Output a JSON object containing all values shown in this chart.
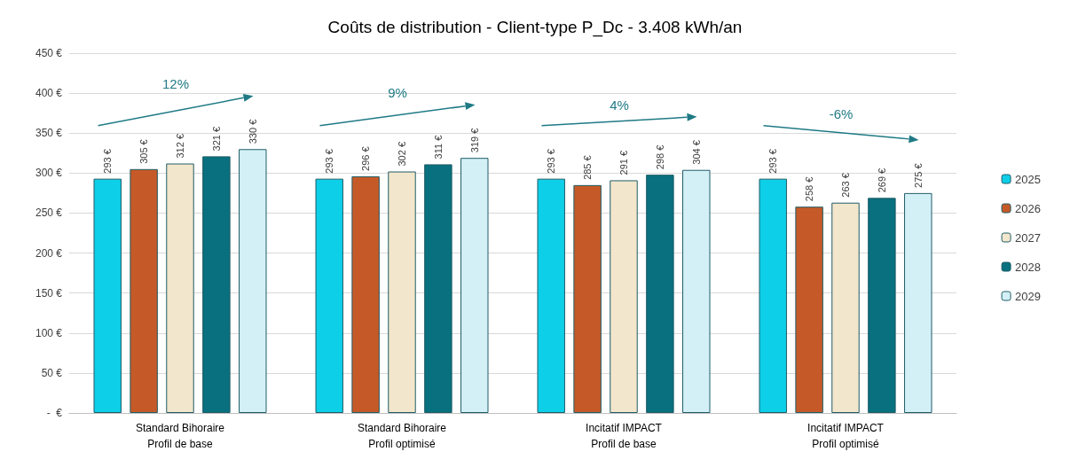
{
  "chart_data": {
    "type": "bar",
    "title": "Coûts de distribution - Client-type P_Dc - 3.408 kWh/an",
    "categories": [
      "Standard Bihoraire\nProfil de base",
      "Standard Bihoraire\nProfil optimisé",
      "Incitatif IMPACT\nProfil de base",
      "Incitatif IMPACT\nProfil optimisé"
    ],
    "series": [
      {
        "name": "2025",
        "color": "#0ecfe8",
        "values": [
          293,
          293,
          293,
          293
        ],
        "value_labels": [
          "293 €",
          "293 €",
          "293 €",
          "293 €"
        ]
      },
      {
        "name": "2026",
        "color": "#c55a28",
        "values": [
          305,
          296,
          285,
          258
        ],
        "value_labels": [
          "305 €",
          "296 €",
          "285 €",
          "258 €"
        ]
      },
      {
        "name": "2027",
        "color": "#f2e6cc",
        "values": [
          312,
          302,
          291,
          263
        ],
        "value_labels": [
          "312 €",
          "302 €",
          "291 €",
          "263 €"
        ]
      },
      {
        "name": "2028",
        "color": "#08707e",
        "values": [
          321,
          311,
          298,
          269
        ],
        "value_labels": [
          "321 €",
          "311 €",
          "298 €",
          "269 €"
        ]
      },
      {
        "name": "2029",
        "color": "#d4f0f7",
        "values": [
          330,
          319,
          304,
          275
        ],
        "value_labels": [
          "330 €",
          "319 €",
          "304 €",
          "275 €"
        ]
      }
    ],
    "ylim": [
      0,
      450
    ],
    "yticks": [
      {
        "value": 0,
        "label": "-  €"
      },
      {
        "value": 50,
        "label": "50 €"
      },
      {
        "value": 100,
        "label": "100 €"
      },
      {
        "value": 150,
        "label": "150 €"
      },
      {
        "value": 200,
        "label": "200 €"
      },
      {
        "value": 250,
        "label": "250 €"
      },
      {
        "value": 300,
        "label": "300 €"
      },
      {
        "value": 350,
        "label": "350 €"
      },
      {
        "value": 400,
        "label": "400 €"
      },
      {
        "value": 450,
        "label": "450 €"
      }
    ],
    "grid": "y",
    "legend": "right",
    "annotations": [
      "12%",
      "9%",
      "4%",
      "-6%"
    ]
  }
}
